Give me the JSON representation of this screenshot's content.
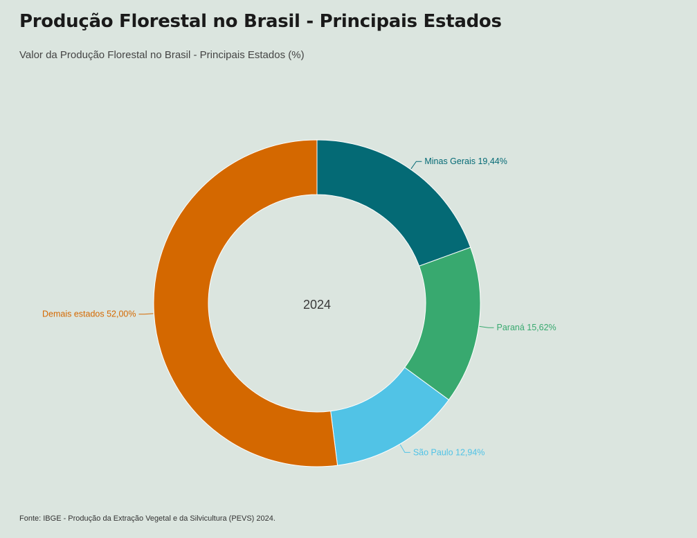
{
  "header": {
    "title": "Produção Florestal no Brasil - Principais Estados",
    "subtitle": "Valor da Produção Florestal no Brasil - Principais Estados (%)"
  },
  "footer": {
    "source": "Fonte: IBGE - Produção da Extração Vegetal e da Silvicultura (PEVS) 2024."
  },
  "chart_data": {
    "type": "pie",
    "variant": "donut",
    "title": "Produção Florestal no Brasil - Principais Estados",
    "subtitle": "Valor da Produção Florestal no Brasil - Principais Estados (%)",
    "center_label": "2024",
    "unit": "%",
    "slices": [
      {
        "name": "Minas Gerais",
        "value": 19.44,
        "label": "Minas Gerais 19,44%",
        "color": "#046a75"
      },
      {
        "name": "Paraná",
        "value": 15.62,
        "label": "Paraná 15,62%",
        "color": "#38a96f"
      },
      {
        "name": "São Paulo",
        "value": 12.94,
        "label": "São Paulo 12,94%",
        "color": "#51c3e6"
      },
      {
        "name": "Demais estados",
        "value": 52.0,
        "label": "Demais estados 52,00%",
        "color": "#d46800"
      }
    ]
  }
}
